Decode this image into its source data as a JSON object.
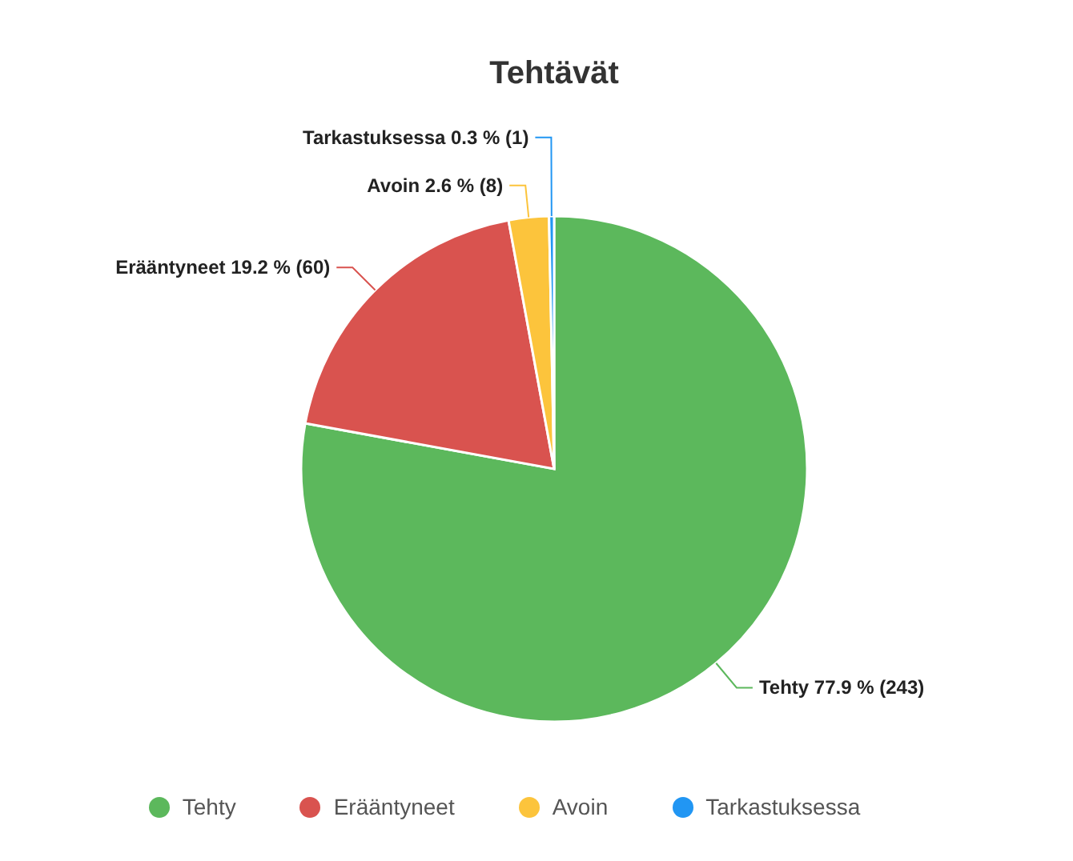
{
  "chart_data": {
    "type": "pie",
    "title": "Tehtävät",
    "categories": [
      "Tehty",
      "Erääntyneet",
      "Avoin",
      "Tarkastuksessa"
    ],
    "values": [
      243,
      60,
      8,
      1
    ],
    "colors": [
      "#5cb85c",
      "#d9534f",
      "#fcc43c",
      "#2196f3"
    ],
    "value_labels": [
      "Tehty 77.9 % (243)",
      "Erääntyneet 19.2 % (60)",
      "Avoin 2.6 % (8)",
      "Tarkastuksessa 0.3 % (1)"
    ],
    "legend": "bottom"
  }
}
